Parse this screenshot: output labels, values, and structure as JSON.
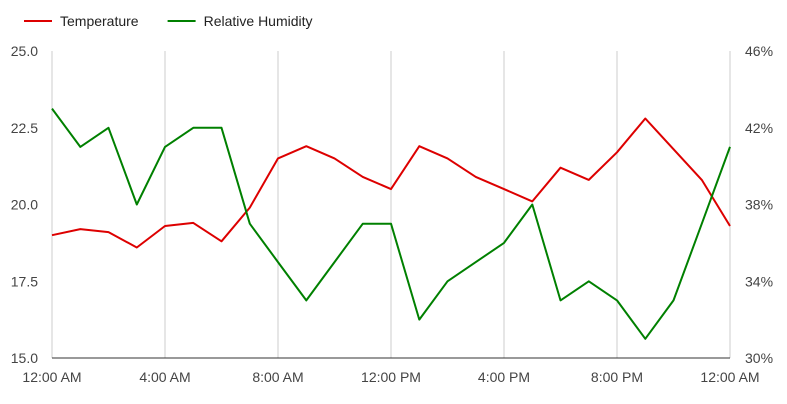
{
  "chart_data": {
    "type": "line",
    "title": "",
    "xlabel": "",
    "ylabel": "",
    "legend_position": "top-left",
    "grid": "vertical",
    "x": [
      "00:00",
      "01:00",
      "02:00",
      "03:00",
      "04:00",
      "05:00",
      "06:00",
      "07:00",
      "08:00",
      "09:00",
      "10:00",
      "11:00",
      "12:00",
      "13:00",
      "14:00",
      "15:00",
      "16:00",
      "17:00",
      "18:00",
      "19:00",
      "20:00",
      "21:00",
      "22:00",
      "23:00",
      "24:00"
    ],
    "x_ticks": [
      {
        "hour": 0,
        "label": "12:00 AM"
      },
      {
        "hour": 4,
        "label": "4:00 AM"
      },
      {
        "hour": 8,
        "label": "8:00 AM"
      },
      {
        "hour": 12,
        "label": "12:00 PM"
      },
      {
        "hour": 16,
        "label": "4:00 PM"
      },
      {
        "hour": 20,
        "label": "8:00 PM"
      },
      {
        "hour": 24,
        "label": "12:00 AM"
      }
    ],
    "y_left": {
      "range": [
        15.0,
        25.0
      ],
      "ticks": [
        "15.0",
        "17.5",
        "20.0",
        "22.5",
        "25.0"
      ]
    },
    "y_right": {
      "range": [
        30,
        46
      ],
      "ticks": [
        "30%",
        "34%",
        "38%",
        "42%",
        "46%"
      ]
    },
    "series": [
      {
        "name": "Temperature",
        "axis": "left",
        "color": "#dd0000",
        "values": [
          19.0,
          19.2,
          19.1,
          18.6,
          19.3,
          19.4,
          18.8,
          19.9,
          21.5,
          21.9,
          21.5,
          20.9,
          20.5,
          21.9,
          21.5,
          20.9,
          20.5,
          20.1,
          21.2,
          20.8,
          21.7,
          22.8,
          21.8,
          20.8,
          19.3
        ]
      },
      {
        "name": "Relative Humidity",
        "axis": "right",
        "color": "#008000",
        "values": [
          43,
          41,
          42,
          38,
          41,
          42,
          42,
          37,
          35,
          33,
          35,
          37,
          37,
          32,
          34,
          35,
          36,
          38,
          33,
          34,
          33,
          31,
          33,
          37,
          41
        ]
      }
    ]
  }
}
